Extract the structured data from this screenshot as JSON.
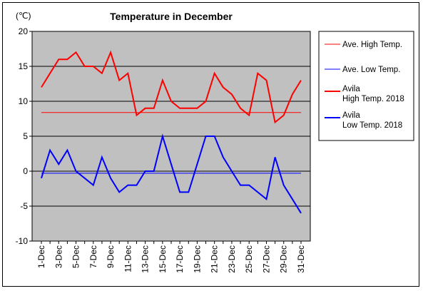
{
  "chart_data": {
    "type": "line",
    "title": "Temperature in December",
    "ylabel": "(℃)",
    "xlabel": "",
    "ylim": [
      -10,
      20
    ],
    "yticks": [
      -10,
      -5,
      0,
      5,
      10,
      15,
      20
    ],
    "grid": true,
    "plot_background": "#c0c0c0",
    "legend_position": "right",
    "x": [
      1,
      2,
      3,
      4,
      5,
      6,
      7,
      8,
      9,
      10,
      11,
      12,
      13,
      14,
      15,
      16,
      17,
      18,
      19,
      20,
      21,
      22,
      23,
      24,
      25,
      26,
      27,
      28,
      29,
      30,
      31
    ],
    "x_tick_labels": [
      "1-Dec",
      "3-Dec",
      "5-Dec",
      "7-Dec",
      "9-Dec",
      "11-Dec",
      "13-Dec",
      "15-Dec",
      "17-Dec",
      "19-Dec",
      "21-Dec",
      "23-Dec",
      "25-Dec",
      "27-Dec",
      "29-Dec",
      "31-Dec"
    ],
    "series": [
      {
        "name": "Ave. High Temp.",
        "color": "#ff0000",
        "stroke_width": 1,
        "values": [
          8.4,
          8.4,
          8.4,
          8.4,
          8.4,
          8.4,
          8.4,
          8.4,
          8.4,
          8.4,
          8.4,
          8.4,
          8.4,
          8.4,
          8.4,
          8.4,
          8.4,
          8.4,
          8.4,
          8.4,
          8.4,
          8.4,
          8.4,
          8.4,
          8.4,
          8.4,
          8.4,
          8.4,
          8.4,
          8.4,
          8.4
        ]
      },
      {
        "name": "Ave. Low Temp.",
        "color": "#0000ff",
        "stroke_width": 1,
        "values": [
          -0.3,
          -0.3,
          -0.3,
          -0.3,
          -0.3,
          -0.3,
          -0.3,
          -0.3,
          -0.3,
          -0.3,
          -0.3,
          -0.3,
          -0.3,
          -0.3,
          -0.3,
          -0.3,
          -0.3,
          -0.3,
          -0.3,
          -0.3,
          -0.3,
          -0.3,
          -0.3,
          -0.3,
          -0.3,
          -0.3,
          -0.3,
          -0.3,
          -0.3,
          -0.3,
          -0.3
        ]
      },
      {
        "name": "Avila High Temp. 2018",
        "legend_lines": [
          "Avila",
          "High Temp. 2018"
        ],
        "color": "#ff0000",
        "stroke_width": 2,
        "values": [
          12,
          14,
          16,
          16,
          17,
          15,
          15,
          14,
          17,
          13,
          14,
          8,
          9,
          9,
          13,
          10,
          9,
          9,
          9,
          10,
          14,
          12,
          11,
          9,
          8,
          14,
          13,
          7,
          8,
          11,
          13
        ]
      },
      {
        "name": "Avila Low Temp. 2018",
        "legend_lines": [
          "Avila",
          "Low Temp. 2018"
        ],
        "color": "#0000ff",
        "stroke_width": 2,
        "values": [
          -1,
          3,
          1,
          3,
          0,
          -1,
          -2,
          2,
          -1,
          -3,
          -2,
          -2,
          0,
          0,
          5,
          1,
          -3,
          -3,
          1,
          5,
          5,
          2,
          0,
          -2,
          -2,
          -3,
          -4,
          2,
          -2,
          -4,
          -6
        ]
      }
    ]
  }
}
